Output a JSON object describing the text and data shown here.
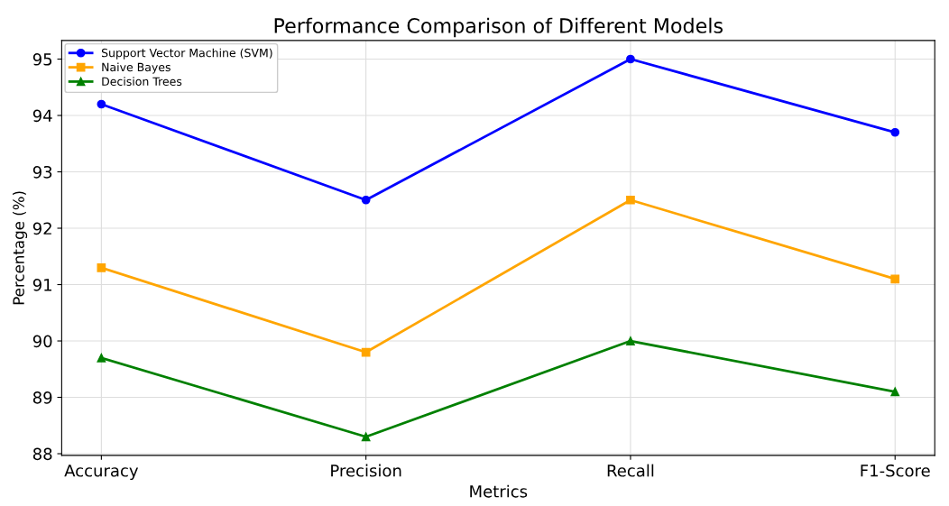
{
  "chart_data": {
    "type": "line",
    "title": "Performance Comparison of Different Models",
    "xlabel": "Metrics",
    "ylabel": "Percentage (%)",
    "categories": [
      "Accuracy",
      "Precision",
      "Recall",
      "F1-Score"
    ],
    "series": [
      {
        "name": "Support Vector Machine (SVM)",
        "color": "#0000ff",
        "marker": "circle",
        "values": [
          94.2,
          92.5,
          95.0,
          93.7
        ]
      },
      {
        "name": "Naive Bayes",
        "color": "#ffa500",
        "marker": "square",
        "values": [
          91.3,
          89.8,
          92.5,
          91.1
        ]
      },
      {
        "name": "Decision Trees",
        "color": "#008000",
        "marker": "triangle",
        "values": [
          89.7,
          88.3,
          90.0,
          89.1
        ]
      }
    ],
    "ylim": [
      87.97,
      95.33
    ],
    "yticks": [
      88,
      89,
      90,
      91,
      92,
      93,
      94,
      95
    ],
    "grid": true,
    "legend": "top left",
    "line_style": "solid"
  }
}
